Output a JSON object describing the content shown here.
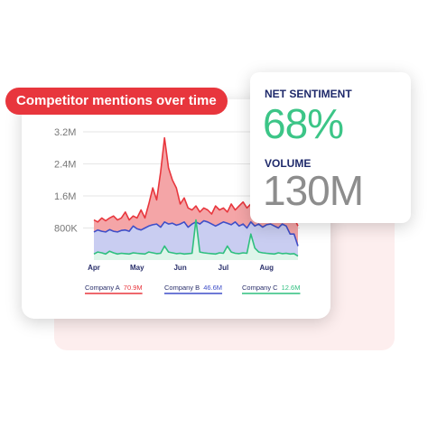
{
  "title": "Competitor mentions over time",
  "stats": {
    "sentiment_label": "NET SENTIMENT",
    "sentiment_value": "68%",
    "volume_label": "VOLUME",
    "volume_value": "130M"
  },
  "colors": {
    "accent_red": "#e8363d",
    "series_a": "#e8363d",
    "series_b": "#3f4fc8",
    "series_c": "#2fbf7f",
    "label_navy": "#1f2a6b",
    "sentiment_green": "#3cc587",
    "volume_gray": "#8d8d8d"
  },
  "legend": [
    {
      "name": "Company A",
      "value": "70.9M"
    },
    {
      "name": "Company B",
      "value": "46.6M"
    },
    {
      "name": "Company C",
      "value": "12.6M"
    }
  ],
  "chart_data": {
    "type": "area",
    "title": "Competitor mentions over time",
    "y_ticks": [
      "3.2M",
      "2.4M",
      "1.6M",
      "800K"
    ],
    "y_tick_values": [
      3200000,
      2400000,
      1600000,
      800000
    ],
    "x_ticks": [
      "Apr",
      "May",
      "Jun",
      "Jul",
      "Aug"
    ],
    "x_tick_index": [
      0,
      11,
      22,
      33,
      44
    ],
    "ylim": [
      0,
      3400000
    ],
    "grid": true,
    "series": [
      {
        "name": "Company A",
        "values": [
          1000000,
          950000,
          1050000,
          980000,
          1050000,
          1100000,
          1000000,
          1050000,
          1200000,
          1000000,
          1100000,
          1050000,
          1250000,
          1050000,
          1400000,
          1800000,
          1500000,
          2200000,
          3050000,
          2300000,
          2000000,
          1800000,
          1400000,
          1550000,
          1300000,
          1250000,
          1350000,
          1200000,
          1300000,
          1250000,
          1150000,
          1350000,
          1250000,
          1300000,
          1200000,
          1400000,
          1250000,
          1350000,
          1450000,
          1300000,
          1400000,
          1700000,
          1600000,
          1350000,
          1400000,
          1250000,
          1600000,
          1300000,
          1150000,
          1150000,
          1000000,
          1050000,
          850000
        ]
      },
      {
        "name": "Company B",
        "values": [
          700000,
          750000,
          720000,
          700000,
          760000,
          720000,
          700000,
          740000,
          750000,
          720000,
          850000,
          780000,
          750000,
          800000,
          850000,
          880000,
          900000,
          820000,
          950000,
          900000,
          920000,
          870000,
          900000,
          950000,
          820000,
          900000,
          950000,
          900000,
          980000,
          950000,
          900000,
          850000,
          900000,
          950000,
          920000,
          880000,
          950000,
          850000,
          900000,
          800000,
          950000,
          850000,
          900000,
          820000,
          880000,
          900000,
          850000,
          800000,
          900000,
          850000,
          650000,
          650000,
          350000
        ]
      },
      {
        "name": "Company C",
        "values": [
          150000,
          200000,
          180000,
          150000,
          220000,
          180000,
          150000,
          170000,
          160000,
          150000,
          180000,
          170000,
          160000,
          150000,
          200000,
          180000,
          160000,
          170000,
          350000,
          200000,
          180000,
          160000,
          170000,
          150000,
          160000,
          170000,
          1000000,
          200000,
          180000,
          170000,
          160000,
          150000,
          180000,
          170000,
          350000,
          200000,
          170000,
          160000,
          180000,
          170000,
          650000,
          300000,
          200000,
          180000,
          170000,
          160000,
          150000,
          180000,
          160000,
          170000,
          150000,
          160000,
          100000
        ]
      }
    ]
  }
}
